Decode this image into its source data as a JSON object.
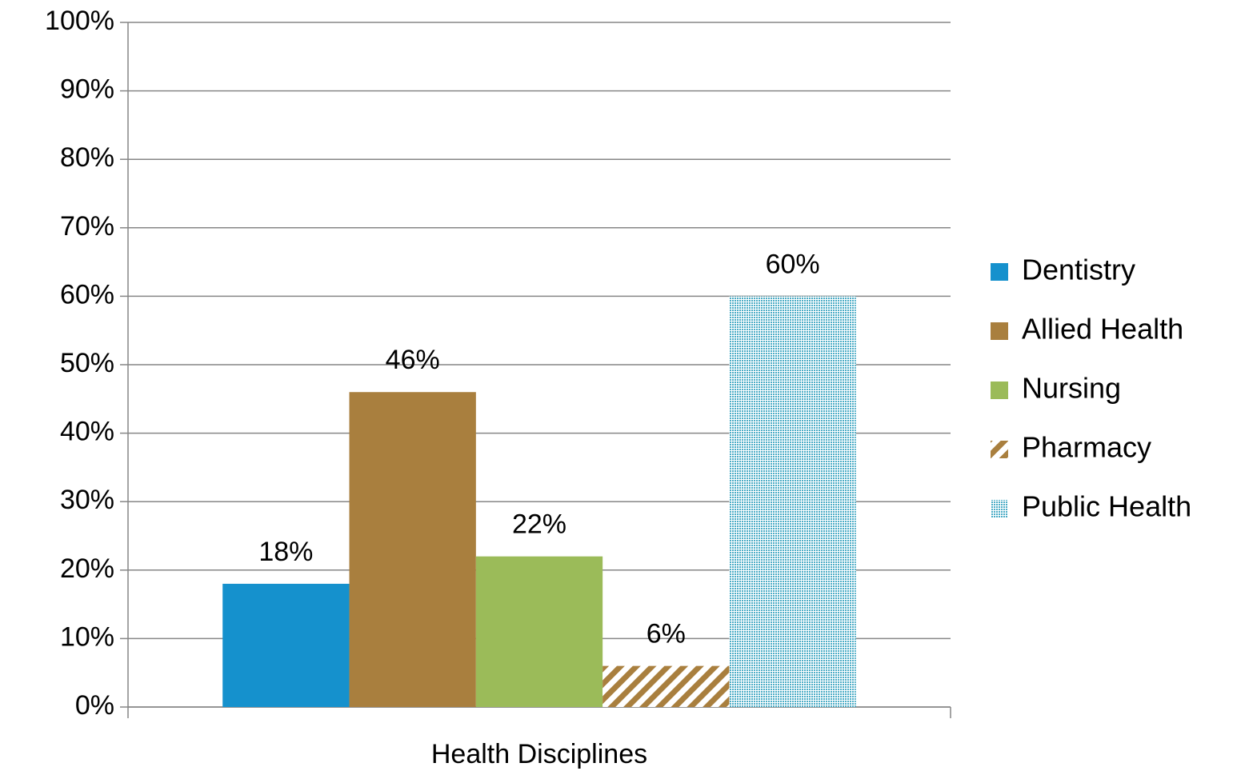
{
  "chart_data": {
    "type": "bar",
    "categories": [
      "Health Disciplines"
    ],
    "series": [
      {
        "name": "Dentistry",
        "color": "#1591cd",
        "values": [
          18
        ],
        "value_labels": [
          "18%"
        ]
      },
      {
        "name": "Allied Health",
        "color": "#a97f3e",
        "values": [
          46
        ],
        "value_labels": [
          "46%"
        ]
      },
      {
        "name": "Nursing",
        "color": "#9bbb59",
        "values": [
          22
        ],
        "value_labels": [
          "22%"
        ]
      },
      {
        "name": "Pharmacy",
        "color": "#a97f3e",
        "pattern": "hatch",
        "values": [
          6
        ],
        "value_labels": [
          "6%"
        ]
      },
      {
        "name": "Public Health",
        "color": "#4bacc6",
        "pattern": "dots",
        "values": [
          60
        ],
        "value_labels": [
          "60%"
        ]
      }
    ],
    "ylim": [
      0,
      100
    ],
    "yticks": [
      {
        "value": 0,
        "label": "0%"
      },
      {
        "value": 10,
        "label": "10%"
      },
      {
        "value": 20,
        "label": "20%"
      },
      {
        "value": 30,
        "label": "30%"
      },
      {
        "value": 40,
        "label": "40%"
      },
      {
        "value": 50,
        "label": "50%"
      },
      {
        "value": 60,
        "label": "60%"
      },
      {
        "value": 70,
        "label": "70%"
      },
      {
        "value": 80,
        "label": "80%"
      },
      {
        "value": 90,
        "label": "90%"
      },
      {
        "value": 100,
        "label": "100%"
      }
    ],
    "grid": true,
    "legend": "right"
  }
}
